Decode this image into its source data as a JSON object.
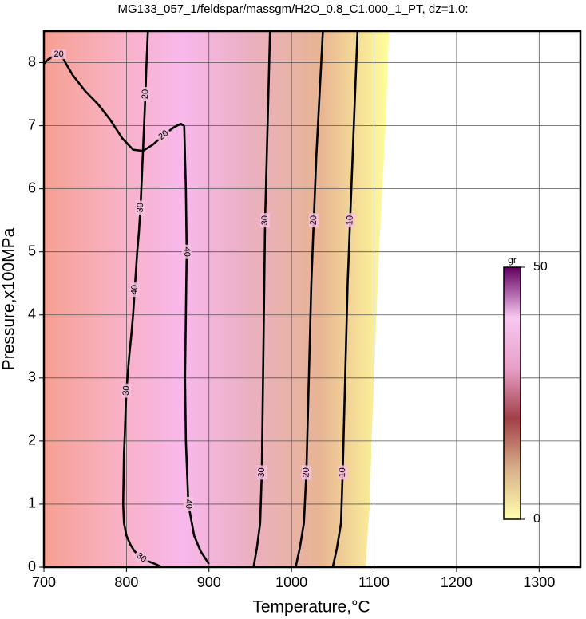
{
  "chart_data": {
    "type": "contour",
    "title": "MG133_057_1/feldspar/massgm/H2O_0.8_C1.000_1_PT, dz=1.0:",
    "x_label": "Temperature,°C",
    "y_label": "Pressure,x100MPa",
    "xlim": [
      700,
      1350
    ],
    "ylim": [
      0,
      8.5
    ],
    "xticks": [
      700,
      800,
      900,
      1000,
      1100,
      1200,
      1300
    ],
    "yticks": [
      0,
      1,
      2,
      3,
      4,
      5,
      6,
      7,
      8
    ],
    "grid": true,
    "field_colors": [
      "#f6a092",
      "#f8b0c0",
      "#f8b8ec",
      "#eab0c0",
      "#e8b494",
      "#ffff9a"
    ],
    "field_edge": {
      "x": [
        1090,
        1092,
        1095,
        1097,
        1100,
        1103,
        1106,
        1110,
        1114,
        1118
      ],
      "y": [
        0,
        0.5,
        1,
        2,
        3,
        4,
        5,
        6,
        7,
        8.5
      ]
    },
    "contours": [
      {
        "level": 20,
        "x": [
          700,
          705,
          712,
          718,
          722,
          726,
          735,
          750,
          765,
          780,
          795,
          808,
          820,
          832,
          845,
          858,
          866,
          870
        ],
        "y": [
          7.98,
          8.05,
          8.1,
          8.13,
          8.1,
          8.0,
          7.8,
          7.55,
          7.35,
          7.1,
          6.8,
          6.62,
          6.6,
          6.7,
          6.85,
          6.98,
          7.03,
          7.0
        ]
      },
      {
        "level": 40,
        "x": [
          870,
          871,
          872,
          873,
          872,
          871,
          872,
          875,
          882,
          890,
          900
        ],
        "y": [
          7.0,
          6.5,
          6.0,
          5.0,
          4.0,
          3.0,
          2.0,
          1.0,
          0.5,
          0.25,
          0.05
        ]
      },
      {
        "level": 20,
        "x": [
          826,
          825,
          824,
          823,
          822,
          821,
          820
        ],
        "y": [
          8.5,
          8.2,
          7.9,
          7.5,
          7.2,
          6.9,
          6.6
        ]
      },
      {
        "level": 30,
        "x": [
          820,
          819,
          818,
          817,
          816,
          815,
          813
        ],
        "y": [
          6.6,
          6.3,
          6.0,
          5.7,
          5.5,
          5.3,
          5.0
        ]
      },
      {
        "level": 40,
        "x": [
          813,
          812,
          811,
          810,
          809,
          808
        ],
        "y": [
          5.0,
          4.8,
          4.6,
          4.4,
          4.2,
          4.0
        ]
      },
      {
        "level": 30,
        "x": [
          808,
          806,
          803,
          800,
          799,
          798,
          797,
          796,
          797,
          800,
          805,
          810,
          818,
          825,
          835,
          843
        ],
        "y": [
          4.0,
          3.7,
          3.3,
          2.8,
          2.5,
          2.1,
          1.8,
          1.0,
          0.7,
          0.5,
          0.35,
          0.25,
          0.15,
          0.1,
          0.05,
          0.0
        ]
      },
      {
        "level": 30,
        "x": [
          954,
          958,
          962,
          964,
          965,
          966,
          967,
          968,
          970,
          972,
          974
        ],
        "y": [
          0,
          0.3,
          0.7,
          1.5,
          2.5,
          3.5,
          4.5,
          5.5,
          6.5,
          7.5,
          8.5
        ]
      },
      {
        "level": 20,
        "x": [
          1005,
          1010,
          1015,
          1018,
          1020,
          1022,
          1024,
          1027,
          1030,
          1034,
          1038
        ],
        "y": [
          0,
          0.3,
          0.7,
          1.5,
          2.5,
          3.5,
          4.5,
          5.5,
          6.5,
          7.5,
          8.5
        ]
      },
      {
        "level": 10,
        "x": [
          1050,
          1055,
          1060,
          1062,
          1064,
          1066,
          1068,
          1071,
          1074,
          1077,
          1080
        ],
        "y": [
          0,
          0.3,
          0.7,
          1.5,
          2.5,
          3.5,
          4.5,
          5.5,
          6.5,
          7.5,
          8.5
        ]
      }
    ],
    "colorbar": {
      "label": "gr",
      "lim": [
        0,
        50
      ],
      "ticks": [
        0,
        50
      ],
      "colors": [
        "#ffffb0",
        "#d8b088",
        "#a04048",
        "#e8a0c8",
        "#f8c8f0",
        "#600060"
      ]
    }
  }
}
